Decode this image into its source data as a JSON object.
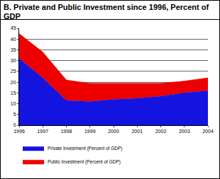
{
  "chart_data": {
    "type": "area",
    "title": "B. Private and Public Investment since 1996, Percent of GDP",
    "x": [
      1996,
      1997,
      1998,
      1999,
      2000,
      2001,
      2002,
      2003,
      2004
    ],
    "series": [
      {
        "name": "Private Investment (Percent of GDP)",
        "color": "#1414e0",
        "values": [
          31,
          22,
          11.5,
          11,
          12,
          12.5,
          13.5,
          15,
          16
        ]
      },
      {
        "name": "Public Investment (Percent of GDP)",
        "color": "#ee0000",
        "values": [
          11.5,
          12,
          9.5,
          8.5,
          7.5,
          7,
          6,
          5.5,
          6
        ]
      }
    ],
    "stacked": true,
    "xlim": [
      1996,
      2004
    ],
    "xticks": [
      1996,
      1997,
      1998,
      1999,
      2000,
      2001,
      2002,
      2003,
      2004
    ],
    "ylim": [
      0,
      45
    ],
    "yticks": [
      0,
      5,
      10,
      15,
      20,
      25,
      30,
      35,
      40,
      45
    ],
    "grid": true,
    "legend": "bottom"
  }
}
